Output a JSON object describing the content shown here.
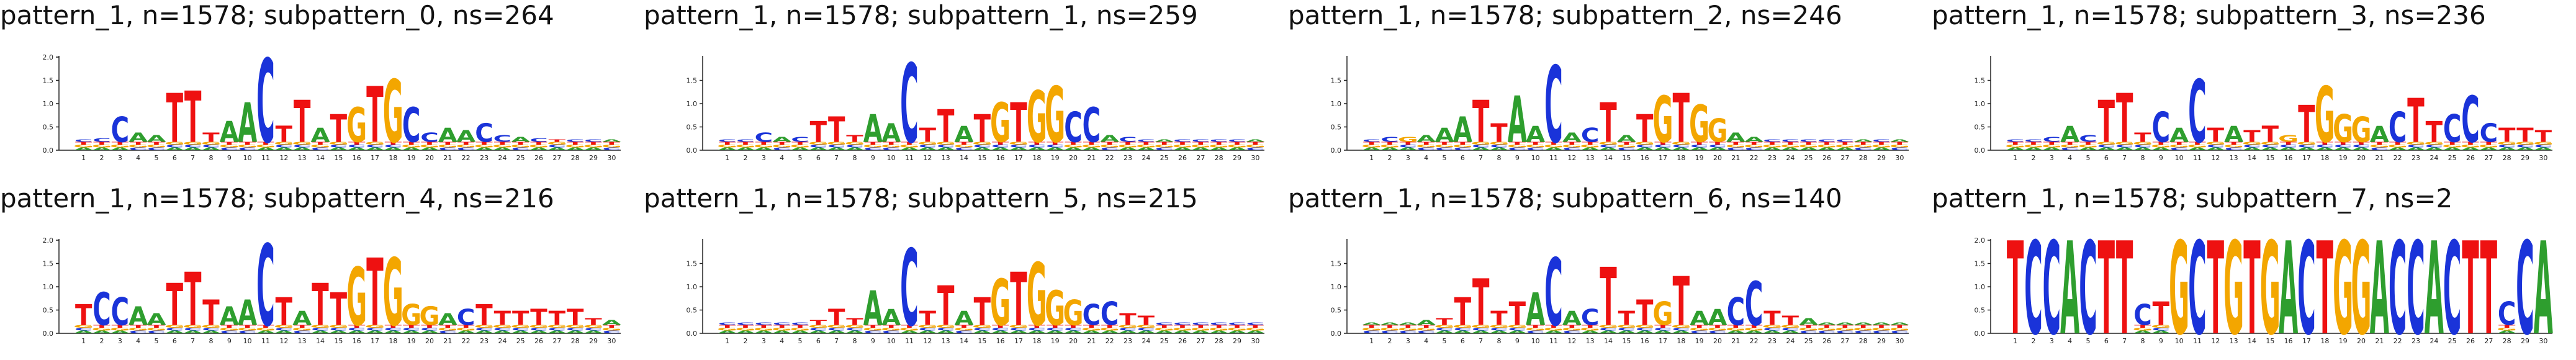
{
  "chart_data": [
    {
      "type": "sequence-logo",
      "title": "pattern_1, n=1578; subpattern_0, ns=264",
      "ylim": [
        0,
        2
      ],
      "yticks": [
        "0.0",
        "0.5",
        "1.0",
        "1.5",
        "2.0"
      ],
      "xticks": [
        "1",
        "2",
        "3",
        "4",
        "5",
        "6",
        "7",
        "8",
        "9",
        "10",
        "11",
        "12",
        "13",
        "14",
        "15",
        "16",
        "17",
        "18",
        "19",
        "20",
        "21",
        "22",
        "23",
        "24",
        "25",
        "26",
        "27",
        "28",
        "29",
        "30"
      ],
      "top_base": [
        "C",
        "C",
        "C",
        "A",
        "A",
        "T",
        "T",
        "T",
        "A",
        "A",
        "C",
        "T",
        "T",
        "A",
        "T",
        "G",
        "T",
        "G",
        "C",
        "C",
        "A",
        "A",
        "C",
        "C",
        "A",
        "C",
        "T",
        "C",
        "C",
        "A"
      ],
      "top_height": [
        0.05,
        0.08,
        0.55,
        0.2,
        0.15,
        1.05,
        1.1,
        0.2,
        0.45,
        0.85,
        1.8,
        0.35,
        0.9,
        0.3,
        0.6,
        0.75,
        1.2,
        1.35,
        0.75,
        0.2,
        0.3,
        0.25,
        0.4,
        0.15,
        0.1,
        0.08,
        0.05,
        0.05,
        0.05,
        0.05
      ]
    },
    {
      "type": "sequence-logo",
      "title": "pattern_1, n=1578; subpattern_1, ns=259",
      "ylim": [
        0,
        2
      ],
      "yticks": [
        "0.0",
        "0.5",
        "1.0",
        "1.5"
      ],
      "xticks": [
        "1",
        "2",
        "3",
        "4",
        "5",
        "6",
        "7",
        "8",
        "9",
        "10",
        "11",
        "12",
        "13",
        "14",
        "15",
        "16",
        "17",
        "18",
        "19",
        "20",
        "21",
        "22",
        "23",
        "24",
        "25",
        "26",
        "27",
        "28",
        "29",
        "30"
      ],
      "top_base": [
        "C",
        "C",
        "C",
        "A",
        "C",
        "T",
        "T",
        "T",
        "A",
        "A",
        "C",
        "T",
        "T",
        "A",
        "T",
        "G",
        "T",
        "G",
        "G",
        "C",
        "C",
        "A",
        "C",
        "C",
        "A",
        "C",
        "C",
        "C",
        "C",
        "A"
      ],
      "top_height": [
        0.05,
        0.05,
        0.2,
        0.1,
        0.1,
        0.45,
        0.55,
        0.15,
        0.6,
        0.4,
        1.7,
        0.3,
        0.7,
        0.35,
        0.6,
        0.85,
        0.85,
        1.1,
        1.2,
        0.65,
        0.75,
        0.15,
        0.1,
        0.05,
        0.05,
        0.05,
        0.05,
        0.05,
        0.05,
        0.05
      ]
    },
    {
      "type": "sequence-logo",
      "title": "pattern_1, n=1578; subpattern_2, ns=246",
      "ylim": [
        0,
        2
      ],
      "yticks": [
        "0.0",
        "0.5",
        "1.0",
        "1.5"
      ],
      "xticks": [
        "1",
        "2",
        "3",
        "4",
        "5",
        "6",
        "7",
        "8",
        "9",
        "10",
        "11",
        "12",
        "13",
        "14",
        "15",
        "16",
        "17",
        "18",
        "19",
        "20",
        "21",
        "22",
        "23",
        "24",
        "25",
        "26",
        "27",
        "28",
        "29",
        "30"
      ],
      "top_base": [
        "C",
        "C",
        "G",
        "A",
        "A",
        "A",
        "T",
        "T",
        "A",
        "A",
        "C",
        "A",
        "C",
        "T",
        "A",
        "T",
        "G",
        "T",
        "G",
        "G",
        "A",
        "A",
        "C",
        "C",
        "C",
        "C",
        "C",
        "A",
        "C",
        "A"
      ],
      "top_height": [
        0.05,
        0.1,
        0.1,
        0.15,
        0.3,
        0.55,
        0.9,
        0.4,
        1.0,
        0.35,
        1.65,
        0.2,
        0.3,
        0.85,
        0.15,
        0.6,
        1.0,
        1.05,
        0.8,
        0.5,
        0.2,
        0.1,
        0.05,
        0.05,
        0.05,
        0.05,
        0.05,
        0.05,
        0.05,
        0.05
      ]
    },
    {
      "type": "sequence-logo",
      "title": "pattern_1, n=1578; subpattern_3, ns=236",
      "ylim": [
        0,
        2
      ],
      "yticks": [
        "0.0",
        "0.5",
        "1.0",
        "1.5"
      ],
      "xticks": [
        "1",
        "2",
        "3",
        "4",
        "5",
        "6",
        "7",
        "8",
        "9",
        "10",
        "11",
        "12",
        "13",
        "14",
        "15",
        "16",
        "17",
        "18",
        "19",
        "20",
        "21",
        "22",
        "23",
        "24",
        "25",
        "26",
        "27",
        "28",
        "29",
        "30"
      ],
      "top_base": [
        "C",
        "C",
        "C",
        "A",
        "C",
        "T",
        "T",
        "T",
        "C",
        "A",
        "C",
        "T",
        "A",
        "T",
        "T",
        "G",
        "T",
        "G",
        "G",
        "G",
        "A",
        "C",
        "T",
        "T",
        "C",
        "C",
        "C",
        "T",
        "T",
        "T"
      ],
      "top_height": [
        0.05,
        0.05,
        0.1,
        0.35,
        0.15,
        0.9,
        1.05,
        0.2,
        0.65,
        0.3,
        1.35,
        0.3,
        0.35,
        0.25,
        0.35,
        0.15,
        0.8,
        1.2,
        0.6,
        0.55,
        0.35,
        0.65,
        0.95,
        0.45,
        0.6,
        1.0,
        0.4,
        0.3,
        0.3,
        0.25
      ]
    },
    {
      "type": "sequence-logo",
      "title": "pattern_1, n=1578; subpattern_4, ns=216",
      "ylim": [
        0,
        2
      ],
      "yticks": [
        "0.0",
        "0.5",
        "1.0",
        "1.5",
        "2.0"
      ],
      "xticks": [
        "1",
        "2",
        "3",
        "4",
        "5",
        "6",
        "7",
        "8",
        "9",
        "10",
        "11",
        "12",
        "13",
        "14",
        "15",
        "16",
        "17",
        "18",
        "19",
        "20",
        "21",
        "22",
        "23",
        "24",
        "25",
        "26",
        "27",
        "28",
        "29",
        "30"
      ],
      "top_base": [
        "T",
        "C",
        "C",
        "A",
        "A",
        "T",
        "T",
        "T",
        "A",
        "A",
        "C",
        "T",
        "A",
        "T",
        "T",
        "G",
        "T",
        "G",
        "G",
        "G",
        "A",
        "C",
        "T",
        "T",
        "T",
        "T",
        "T",
        "T",
        "T",
        "A"
      ],
      "top_height": [
        0.45,
        0.7,
        0.6,
        0.4,
        0.25,
        0.9,
        1.15,
        0.55,
        0.4,
        0.55,
        1.75,
        0.6,
        0.3,
        0.9,
        0.7,
        1.25,
        1.45,
        1.45,
        0.45,
        0.4,
        0.25,
        0.35,
        0.45,
        0.3,
        0.3,
        0.35,
        0.3,
        0.35,
        0.15,
        0.1
      ]
    },
    {
      "type": "sequence-logo",
      "title": "pattern_1, n=1578; subpattern_5, ns=215",
      "ylim": [
        0,
        2
      ],
      "yticks": [
        "0.0",
        "0.5",
        "1.0",
        "1.5"
      ],
      "xticks": [
        "1",
        "2",
        "3",
        "4",
        "5",
        "6",
        "7",
        "8",
        "9",
        "10",
        "11",
        "12",
        "13",
        "14",
        "15",
        "16",
        "17",
        "18",
        "19",
        "20",
        "21",
        "22",
        "23",
        "24",
        "25",
        "26",
        "27",
        "28",
        "29",
        "30"
      ],
      "top_base": [
        "C",
        "C",
        "C",
        "C",
        "C",
        "T",
        "T",
        "T",
        "A",
        "A",
        "C",
        "T",
        "T",
        "A",
        "T",
        "G",
        "T",
        "G",
        "G",
        "G",
        "C",
        "C",
        "T",
        "T",
        "C",
        "C",
        "C",
        "C",
        "C",
        "C"
      ],
      "top_height": [
        0.05,
        0.05,
        0.05,
        0.05,
        0.05,
        0.1,
        0.35,
        0.15,
        0.75,
        0.35,
        1.65,
        0.3,
        0.85,
        0.3,
        0.6,
        1.0,
        1.15,
        1.35,
        0.75,
        0.55,
        0.45,
        0.5,
        0.25,
        0.2,
        0.05,
        0.05,
        0.05,
        0.05,
        0.05,
        0.05
      ]
    },
    {
      "type": "sequence-logo",
      "title": "pattern_1, n=1578; subpattern_6, ns=140",
      "ylim": [
        0,
        2
      ],
      "yticks": [
        "0.0",
        "0.5",
        "1.0",
        "1.5"
      ],
      "xticks": [
        "1",
        "2",
        "3",
        "4",
        "5",
        "6",
        "7",
        "8",
        "9",
        "10",
        "11",
        "12",
        "13",
        "14",
        "15",
        "16",
        "17",
        "18",
        "19",
        "20",
        "21",
        "22",
        "23",
        "24",
        "25",
        "26",
        "27",
        "28",
        "29",
        "30"
      ],
      "top_base": [
        "A",
        "A",
        "A",
        "A",
        "T",
        "T",
        "T",
        "T",
        "T",
        "A",
        "C",
        "A",
        "C",
        "T",
        "T",
        "T",
        "G",
        "T",
        "A",
        "A",
        "C",
        "C",
        "T",
        "T",
        "A",
        "A",
        "A",
        "A",
        "A",
        "A"
      ],
      "top_height": [
        0.05,
        0.05,
        0.05,
        0.1,
        0.15,
        0.6,
        1.0,
        0.3,
        0.5,
        0.7,
        1.45,
        0.3,
        0.35,
        1.25,
        0.3,
        0.55,
        0.5,
        1.05,
        0.3,
        0.35,
        0.6,
        0.95,
        0.3,
        0.2,
        0.15,
        0.05,
        0.05,
        0.05,
        0.05,
        0.05
      ]
    },
    {
      "type": "sequence-logo",
      "title": "pattern_1, n=1578; subpattern_7, ns=2",
      "ylim": [
        0,
        2
      ],
      "yticks": [
        "0.0",
        "0.5",
        "1.0",
        "1.5",
        "2.0"
      ],
      "xticks": [
        "1",
        "2",
        "3",
        "4",
        "5",
        "6",
        "7",
        "8",
        "9",
        "10",
        "11",
        "12",
        "13",
        "14",
        "15",
        "16",
        "17",
        "18",
        "19",
        "20",
        "21",
        "22",
        "23",
        "24",
        "25",
        "26",
        "27",
        "28",
        "29",
        "30"
      ],
      "top_base": [
        "T",
        "C",
        "C",
        "A",
        "C",
        "T",
        "T",
        "C",
        "T",
        "G",
        "C",
        "T",
        "G",
        "T",
        "G",
        "A",
        "C",
        "T",
        "G",
        "G",
        "A",
        "C",
        "C",
        "A",
        "C",
        "T",
        "T",
        "C",
        "C",
        "A"
      ],
      "top_height": [
        2,
        2,
        2,
        2,
        2,
        2,
        2,
        0.45,
        0.5,
        2,
        2,
        2,
        2,
        2,
        2,
        2,
        2,
        2,
        2,
        2,
        2,
        2,
        2,
        2,
        2,
        2,
        2,
        0.5,
        2,
        2
      ]
    }
  ]
}
